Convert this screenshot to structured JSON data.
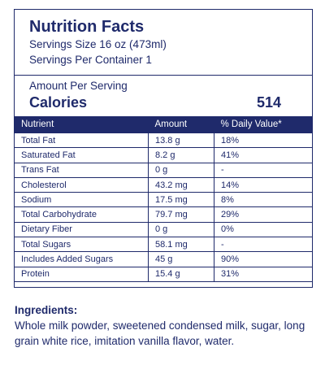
{
  "header": {
    "title": "Nutrition Facts",
    "serving_size": "Servings Size  16 oz (473ml)",
    "servings_per_container": "Servings Per Container 1"
  },
  "calories": {
    "amount_per_serving": "Amount Per Serving",
    "label": "Calories",
    "value": "514"
  },
  "table": {
    "headers": [
      "Nutrient",
      "Amount",
      "% Daily Value*"
    ],
    "rows": [
      [
        "Total Fat",
        "13.8 g",
        "18%"
      ],
      [
        "Saturated Fat",
        "8.2 g",
        "41%"
      ],
      [
        "Trans Fat",
        "0 g",
        "-"
      ],
      [
        "Cholesterol",
        "43.2 mg",
        "14%"
      ],
      [
        "Sodium",
        "17.5 mg",
        "8%"
      ],
      [
        "Total Carbohydrate",
        "79.7 mg",
        "29%"
      ],
      [
        "Dietary Fiber",
        "0 g",
        "0%"
      ],
      [
        "Total Sugars",
        "58.1 mg",
        "-"
      ],
      [
        "Includes Added Sugars",
        "45 g",
        "90%"
      ],
      [
        "Protein",
        "15.4 g",
        "31%"
      ]
    ]
  },
  "ingredients": {
    "title": "Ingredients:",
    "text": "Whole milk powder, sweetened condensed milk, sugar, long grain white rice, imitation vanilla flavor, water."
  },
  "colors": {
    "primary": "#1f2a6b",
    "background": "#ffffff"
  }
}
